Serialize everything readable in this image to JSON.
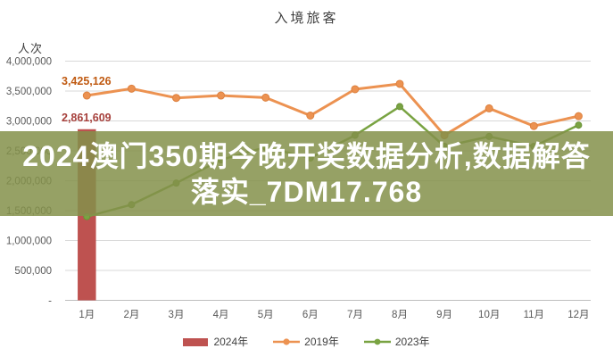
{
  "overlay": {
    "line1": "2024澳门350期今晚开奖数据分析,数据解答",
    "line2": "落实_7DM17.768"
  },
  "chart_data": {
    "type": "combo-bar-line",
    "title": "入境旅客",
    "ylabel": "人次",
    "xlabel": "",
    "categories": [
      "1月",
      "2月",
      "3月",
      "4月",
      "5月",
      "6月",
      "7月",
      "8月",
      "9月",
      "10月",
      "11月",
      "12月"
    ],
    "series": [
      {
        "name": "2024年",
        "type": "bar",
        "color": "#BE5250",
        "marker_stroke": "#AE4846",
        "values": [
          2861609,
          null,
          null,
          null,
          null,
          null,
          null,
          null,
          null,
          null,
          null,
          null
        ]
      },
      {
        "name": "2019年",
        "type": "line",
        "color": "#EC9251",
        "marker_stroke": "#DD813F",
        "values": [
          3425126,
          3540000,
          3385000,
          3425000,
          3390000,
          3090000,
          3530000,
          3620000,
          2760000,
          3210000,
          2915000,
          3080000
        ]
      },
      {
        "name": "2023年",
        "type": "line",
        "color": "#79A342",
        "marker_stroke": "#6B9238",
        "values": [
          1400000,
          1600000,
          1960000,
          2350000,
          2560000,
          2380000,
          2760000,
          3240000,
          2575000,
          2740000,
          2575000,
          2930000
        ]
      }
    ],
    "ylim": [
      0,
      4000000
    ],
    "y_tick_step": 500000,
    "y_ticks": [
      {
        "value": 0,
        "label": "-"
      },
      {
        "value": 500000,
        "label": "500,000"
      },
      {
        "value": 1000000,
        "label": "1,000,000"
      },
      {
        "value": 1500000,
        "label": "1,500,000"
      },
      {
        "value": 2000000,
        "label": "2,000,000"
      },
      {
        "value": 2500000,
        "label": "2,500,000"
      },
      {
        "value": 3000000,
        "label": "3,000,000"
      },
      {
        "value": 3500000,
        "label": "3,500,000"
      },
      {
        "value": 4000000,
        "label": "4,000,000"
      }
    ],
    "grid": "horizontal",
    "legend_position": "bottom",
    "annotations": [
      {
        "text": "3,425,126",
        "series": "2019年",
        "month": "1月",
        "color": "#C05A11"
      },
      {
        "text": "2,861,609",
        "series": "2024年",
        "month": "1月",
        "color": "#A6403C"
      }
    ]
  },
  "colors": {
    "background": "#FFFFFF",
    "gridline": "#D9D9D9",
    "axis_line": "#BFBFBF",
    "tick_text": "#595959",
    "title_text": "#3F3F3F",
    "watermark_band": "rgba(132,144,74,0.85)",
    "watermark_text": "#FFFFFF"
  }
}
